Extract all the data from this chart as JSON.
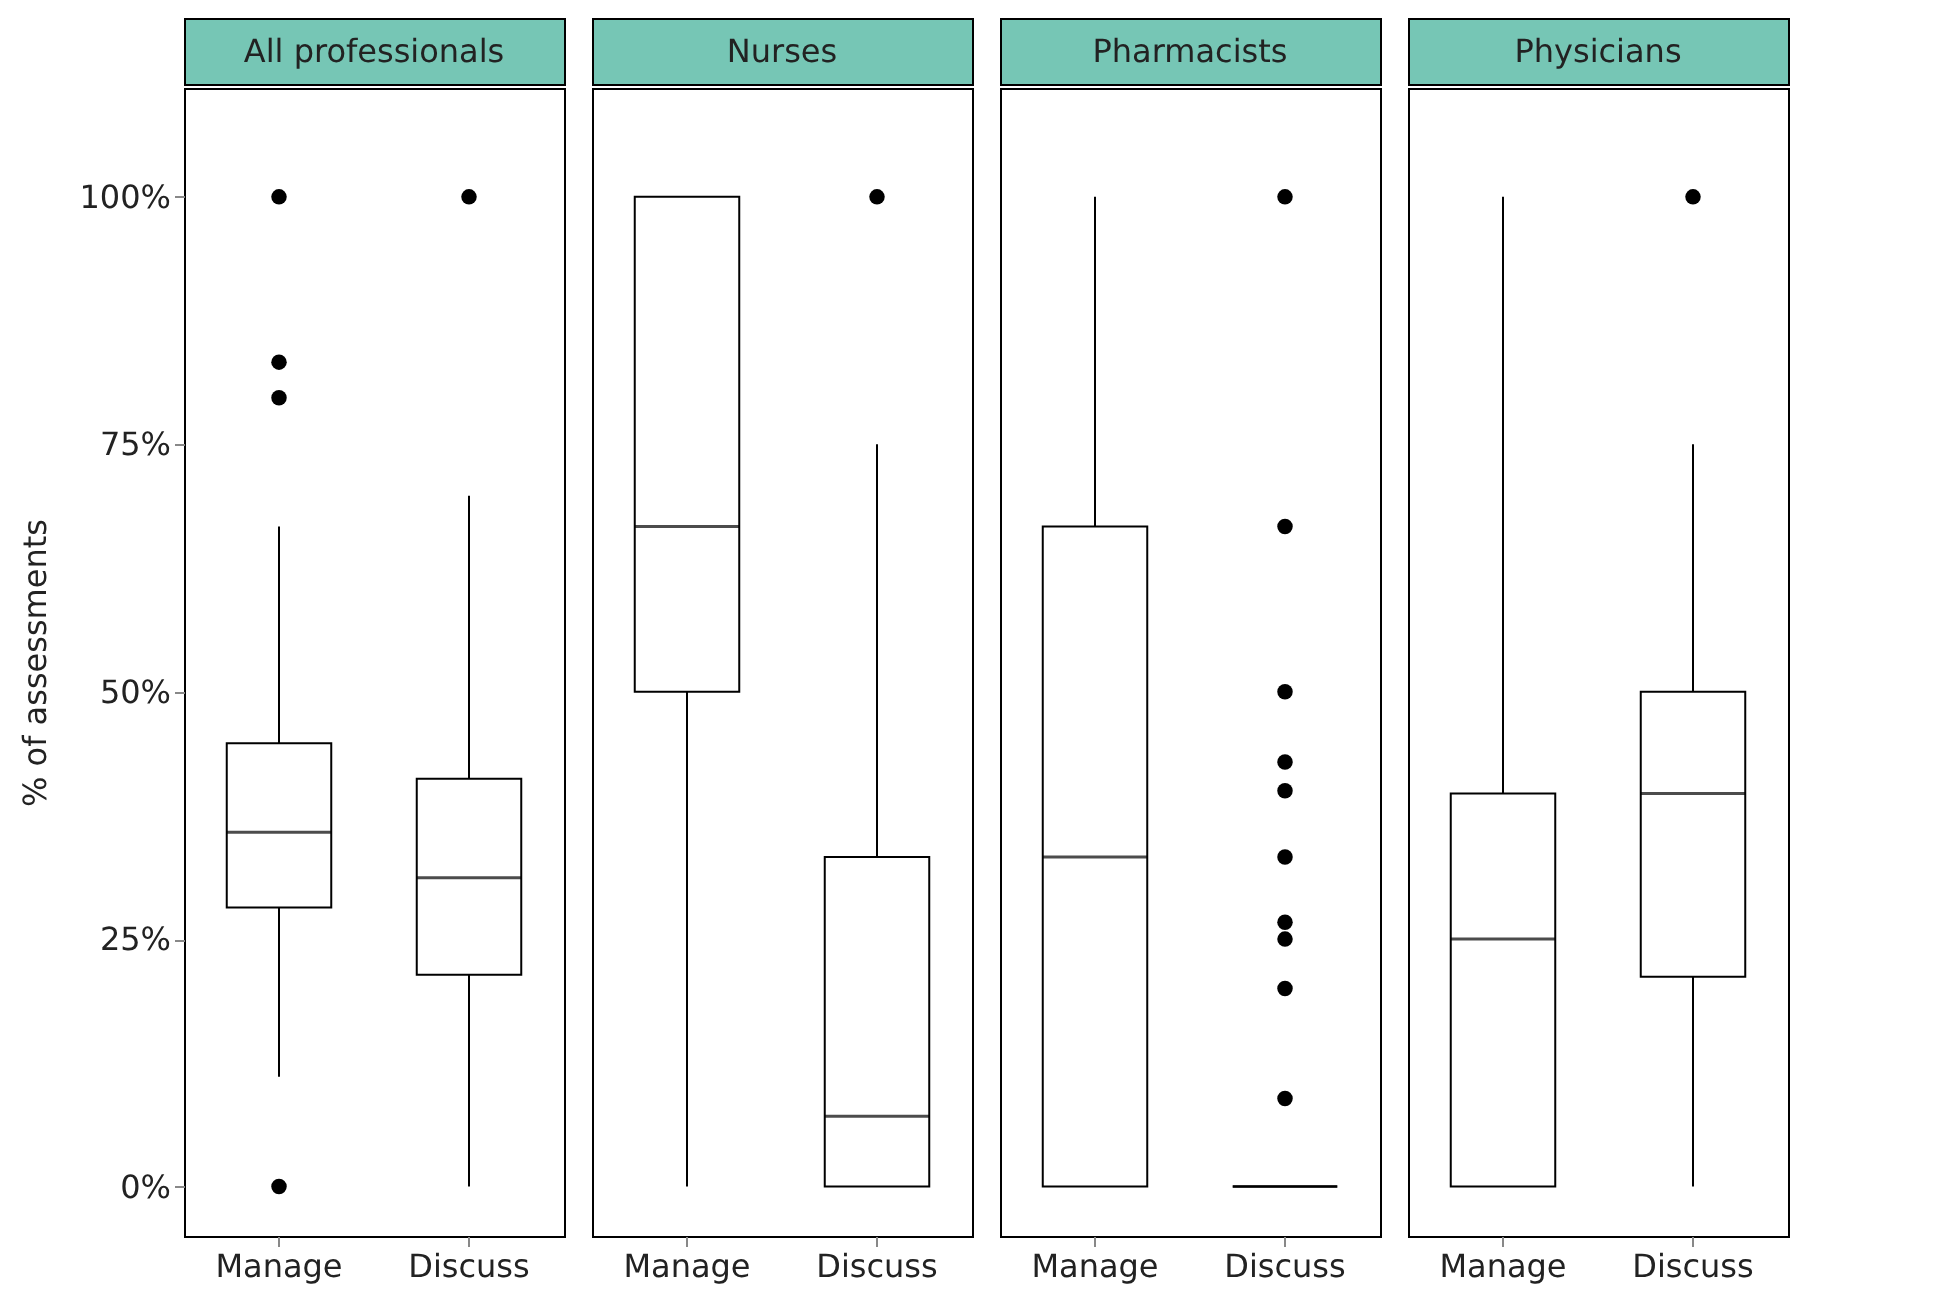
{
  "chart_data": [
    {
      "type": "box",
      "title": "All professionals",
      "ylabel": "% of assessments",
      "categories": [
        "Manage",
        "Discuss"
      ],
      "ylim": [
        -5,
        111
      ],
      "yticks": [
        {
          "value": 0,
          "label": "0%"
        },
        {
          "value": 25,
          "label": "25%"
        },
        {
          "value": 50,
          "label": "50%"
        },
        {
          "value": 75,
          "label": "75%"
        },
        {
          "value": 100,
          "label": "100%"
        }
      ],
      "grid": false,
      "boxes": [
        {
          "low": 11.1,
          "q1": 28.2,
          "median": 35.8,
          "q3": 44.8,
          "high": 66.7,
          "outliers": [
            0,
            79.7,
            83.3,
            100
          ]
        },
        {
          "low": 0,
          "q1": 21.4,
          "median": 31.2,
          "q3": 41.2,
          "high": 69.8,
          "outliers": [
            100
          ]
        }
      ]
    },
    {
      "type": "box",
      "title": "Nurses",
      "categories": [
        "Manage",
        "Discuss"
      ],
      "ylim": [
        -5,
        111
      ],
      "tick_labels": "x",
      "grid": false,
      "boxes": [
        {
          "low": 0,
          "q1": 50,
          "median": 66.7,
          "q3": 100,
          "high": 100
        },
        {
          "low": 0,
          "q1": 0,
          "median": 7.1,
          "q3": 33.3,
          "high": 75,
          "outliers": [
            100
          ]
        }
      ]
    },
    {
      "type": "box",
      "title": "Pharmacists",
      "categories": [
        "Manage",
        "Discuss"
      ],
      "ylim": [
        -5,
        111
      ],
      "tick_labels": "x",
      "grid": false,
      "boxes": [
        {
          "low": 0,
          "q1": 0,
          "median": 33.3,
          "q3": 66.7,
          "high": 100
        },
        {
          "low": 0,
          "q1": 0,
          "median": 0,
          "q3": 0,
          "high": 0,
          "outliers": [
            8.9,
            20,
            25,
            26.7,
            33.3,
            40,
            42.9,
            50,
            66.7,
            100
          ]
        }
      ]
    },
    {
      "type": "box",
      "title": "Physicians",
      "categories": [
        "Manage",
        "Discuss"
      ],
      "ylim": [
        -5,
        111
      ],
      "tick_labels": "x",
      "grid": false,
      "boxes": [
        {
          "low": 0,
          "q1": 0,
          "median": 25,
          "q3": 39.7,
          "high": 100
        },
        {
          "low": 0,
          "q1": 21.2,
          "median": 39.7,
          "q3": 50,
          "high": 75,
          "outliers": [
            100
          ]
        }
      ]
    }
  ]
}
